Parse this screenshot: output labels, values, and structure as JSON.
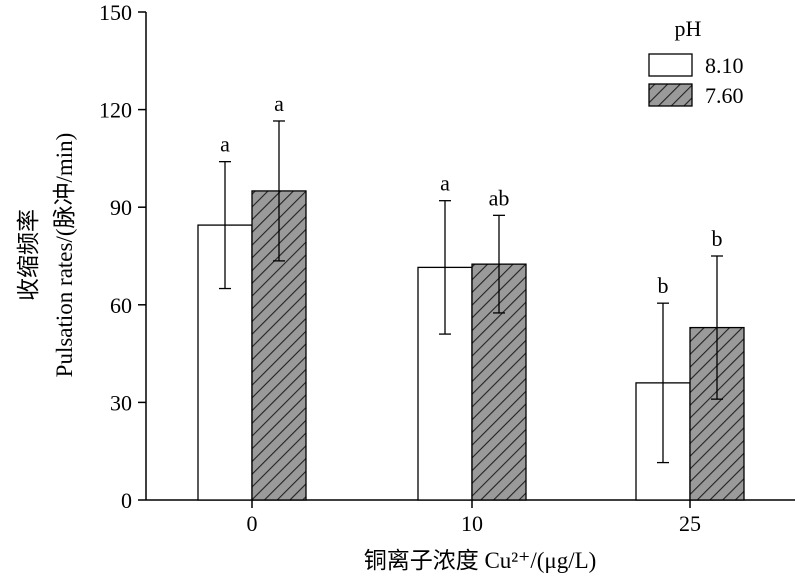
{
  "chart_data": {
    "type": "bar",
    "categories": [
      "0",
      "10",
      "25"
    ],
    "ylim": [
      0,
      150
    ],
    "yticks": [
      "0",
      "30",
      "60",
      "90",
      "120",
      "150"
    ],
    "ylabel_cn": "收缩频率",
    "ylabel_en": "Pulsation rates/(脉冲/min)",
    "xlabel": "铜离子浓度 Cu²⁺/(μg/L)",
    "legend": {
      "title": "pH",
      "position": "top-right"
    },
    "series": [
      {
        "name": "8.10",
        "style": "open",
        "values": [
          84.5,
          71.5,
          36
        ],
        "errors": [
          19.5,
          20.5,
          24.5
        ],
        "letters": [
          "a",
          "a",
          "b"
        ]
      },
      {
        "name": "7.60",
        "style": "hatched",
        "values": [
          95,
          72.5,
          53
        ],
        "errors": [
          21.5,
          15,
          22
        ],
        "letters": [
          "a",
          "ab",
          "b"
        ]
      }
    ],
    "grid": false
  },
  "colors": {
    "hatch_fill": "#9a9a9a",
    "hatch_line": "#222222",
    "open_fill": "#ffffff",
    "stroke": "#000000"
  }
}
